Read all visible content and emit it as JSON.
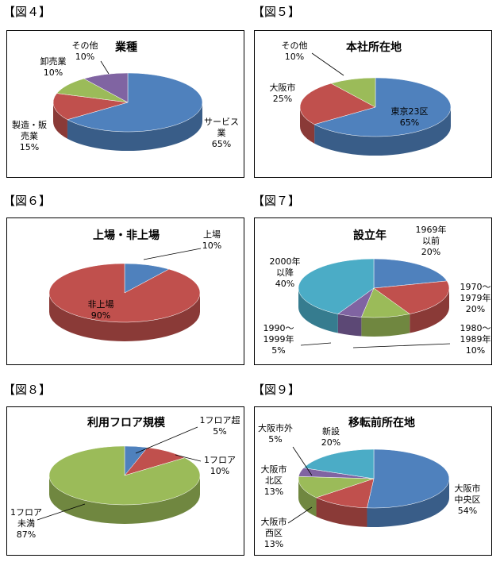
{
  "figures": [
    {
      "label": "【図４】"
    },
    {
      "label": "【図５】"
    },
    {
      "label": "【図６】"
    },
    {
      "label": "【図７】"
    },
    {
      "label": "【図８】"
    },
    {
      "label": "【図９】"
    }
  ],
  "chart_data": [
    {
      "type": "pie",
      "title": "業種",
      "slices": [
        {
          "label": [
            "サービス",
            "業"
          ],
          "pct": "65%",
          "value": 65,
          "color": "#4F81BD"
        },
        {
          "label": [
            "製造・販",
            "売業"
          ],
          "pct": "15%",
          "value": 15,
          "color": "#C0504D"
        },
        {
          "label": [
            "卸売業"
          ],
          "pct": "10%",
          "value": 10,
          "color": "#9BBB59"
        },
        {
          "label": [
            "その他"
          ],
          "pct": "10%",
          "value": 10,
          "color": "#8064A2"
        }
      ]
    },
    {
      "type": "pie",
      "title": "本社所在地",
      "slices": [
        {
          "label": [
            "東京23区"
          ],
          "pct": "65%",
          "value": 65,
          "color": "#4F81BD"
        },
        {
          "label": [
            "大阪市"
          ],
          "pct": "25%",
          "value": 25,
          "color": "#C0504D"
        },
        {
          "label": [
            "その他"
          ],
          "pct": "10%",
          "value": 10,
          "color": "#9BBB59"
        }
      ]
    },
    {
      "type": "pie",
      "title": "上場・非上場",
      "slices": [
        {
          "label": [
            "上場"
          ],
          "pct": "10%",
          "value": 10,
          "color": "#4F81BD"
        },
        {
          "label": [
            "非上場"
          ],
          "pct": "90%",
          "value": 90,
          "color": "#C0504D"
        }
      ]
    },
    {
      "type": "pie",
      "title": "設立年",
      "slices": [
        {
          "label": [
            "1969年",
            "以前"
          ],
          "pct": "20%",
          "value": 20,
          "color": "#4F81BD"
        },
        {
          "label": [
            "1970～",
            "1979年"
          ],
          "pct": "20%",
          "value": 20,
          "color": "#C0504D"
        },
        {
          "label": [
            "1980～",
            "1989年"
          ],
          "pct": "10%",
          "value": 10,
          "color": "#9BBB59"
        },
        {
          "label": [
            "1990～",
            "1999年"
          ],
          "pct": "5%",
          "value": 5,
          "color": "#8064A2"
        },
        {
          "label": [
            "2000年",
            "以降"
          ],
          "pct": "40%",
          "value": 40,
          "color": "#4BACC6"
        }
      ]
    },
    {
      "type": "pie",
      "title": "利用フロア規模",
      "slices": [
        {
          "label": [
            "1フロア超"
          ],
          "pct": "5%",
          "value": 5,
          "color": "#4F81BD"
        },
        {
          "label": [
            "1フロア"
          ],
          "pct": "10%",
          "value": 10,
          "color": "#C0504D"
        },
        {
          "label": [
            "1フロア",
            "未満"
          ],
          "pct": "87%",
          "value": 87,
          "color": "#9BBB59"
        }
      ]
    },
    {
      "type": "pie",
      "title": "移転前所在地",
      "slices": [
        {
          "label": [
            "大阪市",
            "中央区"
          ],
          "pct": "54%",
          "value": 54,
          "color": "#4F81BD"
        },
        {
          "label": [
            "大阪市",
            "西区"
          ],
          "pct": "13%",
          "value": 13,
          "color": "#C0504D"
        },
        {
          "label": [
            "大阪市",
            "北区"
          ],
          "pct": "13%",
          "value": 13,
          "color": "#9BBB59"
        },
        {
          "label": [
            "大阪市外"
          ],
          "pct": "5%",
          "value": 5,
          "color": "#8064A2"
        },
        {
          "label": [
            "新設"
          ],
          "pct": "20%",
          "value": 20,
          "color": "#4BACC6"
        }
      ]
    }
  ]
}
